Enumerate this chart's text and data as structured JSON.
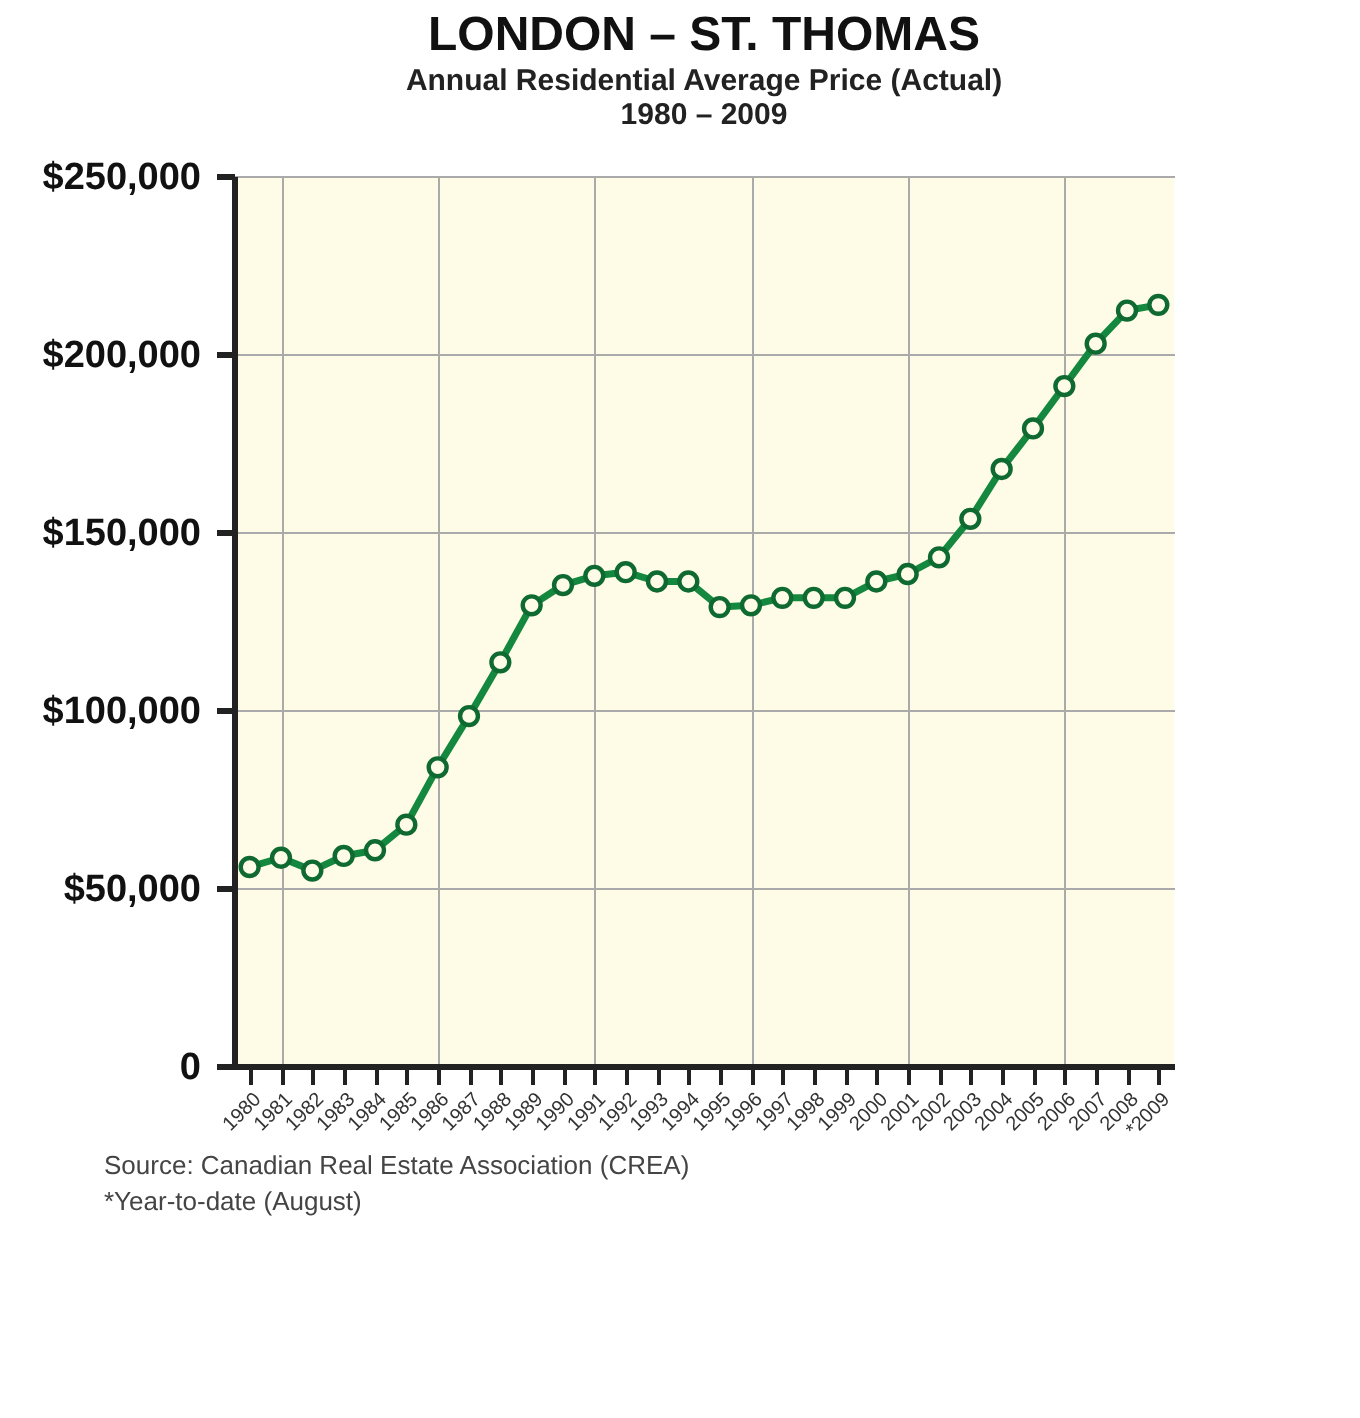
{
  "chart_data": {
    "type": "line",
    "title": "LONDON – ST. THOMAS",
    "subtitle": "Annual Residential Average Price (Actual)\n1980 – 2009",
    "categories": [
      "1980",
      "1981",
      "1982",
      "1983",
      "1984",
      "1985",
      "1986",
      "1987",
      "1988",
      "1989",
      "1990",
      "1991",
      "1992",
      "1993",
      "1994",
      "1995",
      "1996",
      "1997",
      "1998",
      "1999",
      "2000",
      "2001",
      "2002",
      "2003",
      "2004",
      "2005",
      "2006",
      "2007",
      "2008",
      "*2009"
    ],
    "series": [
      {
        "color": "#14883e",
        "values": [
          55900,
          58500,
          54900,
          59000,
          60600,
          67800,
          83900,
          98300,
          113400,
          129400,
          135100,
          137700,
          138700,
          136100,
          136100,
          128900,
          129400,
          131500,
          131500,
          131500,
          136100,
          138200,
          142900,
          153700,
          167700,
          179100,
          191000,
          202900,
          212200,
          213800
        ]
      }
    ],
    "ylim": [
      0,
      250000
    ],
    "yticks": [
      {
        "value": 0,
        "label": "0"
      },
      {
        "value": 50000,
        "label": "$50,000"
      },
      {
        "value": 100000,
        "label": "$100,000"
      },
      {
        "value": 150000,
        "label": "$150,000"
      },
      {
        "value": 200000,
        "label": "$200,000"
      },
      {
        "value": 250000,
        "label": "$250,000"
      }
    ],
    "grid": true,
    "marker": "circle",
    "line_style": "solid",
    "annotations": [
      "Source: Canadian Real Estate Association (CREA)",
      "*Year-to-date (August)"
    ]
  }
}
